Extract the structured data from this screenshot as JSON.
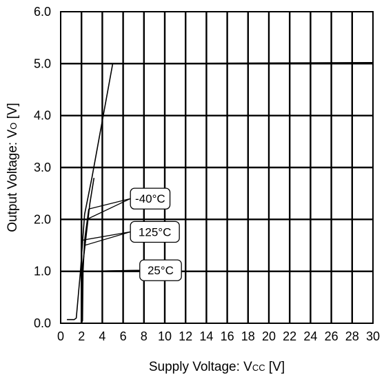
{
  "chart_data": {
    "type": "line",
    "xlabel": "Supply Voltage: V",
    "xlabel_sub": "CC",
    "xlabel_unit": " [V]",
    "ylabel": "Output Voltage: V",
    "ylabel_sub": "O",
    "ylabel_unit": " [V]",
    "xlim": [
      0,
      30
    ],
    "ylim": [
      0,
      6
    ],
    "x_ticks": [
      0,
      2,
      4,
      6,
      8,
      10,
      12,
      14,
      16,
      18,
      20,
      22,
      24,
      26,
      28,
      30
    ],
    "x_tick_labels": [
      "0",
      "2",
      "4",
      "6",
      "8",
      "10",
      "12",
      "14",
      "16",
      "18",
      "20",
      "22",
      "24",
      "26",
      "28",
      "30"
    ],
    "y_ticks": [
      0,
      1,
      2,
      3,
      4,
      5,
      6
    ],
    "y_tick_labels": [
      "0.0",
      "1.0",
      "2.0",
      "3.0",
      "4.0",
      "5.0",
      "6.0"
    ],
    "grid": true,
    "series": [
      {
        "name": "-40°C",
        "x": [
          0.6,
          1.3,
          1.5,
          1.9,
          2.3,
          3.0,
          4.0,
          5.0,
          30.0
        ],
        "y": [
          0.07,
          0.07,
          0.1,
          1.0,
          2.1,
          2.8,
          3.9,
          5.0,
          5.02
        ]
      },
      {
        "name": "125°C",
        "x": [
          2.0,
          2.05,
          2.4,
          2.8,
          3.2
        ],
        "y": [
          0.0,
          1.0,
          1.6,
          2.3,
          2.8
        ]
      },
      {
        "name": "25°C",
        "x": [
          2.0,
          2.1,
          2.15,
          2.3,
          2.7
        ],
        "y": [
          0.0,
          0.05,
          1.0,
          1.6,
          2.2
        ]
      }
    ],
    "annotations": [
      {
        "text": "-40°C",
        "box_x": [
          6.7,
          10.5
        ],
        "box_y": [
          2.2,
          2.6
        ],
        "leaders": [
          [
            2.5,
            2.0
          ],
          [
            2.7,
            2.2
          ]
        ]
      },
      {
        "text": "125°C",
        "box_x": [
          6.7,
          11.4
        ],
        "box_y": [
          1.56,
          1.96
        ],
        "leaders": [
          [
            2.1,
            1.6
          ],
          [
            2.3,
            1.5
          ]
        ]
      },
      {
        "text": "25°C",
        "box_x": [
          7.6,
          11.6
        ],
        "box_y": [
          0.82,
          1.22
        ],
        "leaders": [
          [
            2.0,
            1.0
          ],
          [
            2.3,
            1.0
          ]
        ]
      }
    ]
  }
}
